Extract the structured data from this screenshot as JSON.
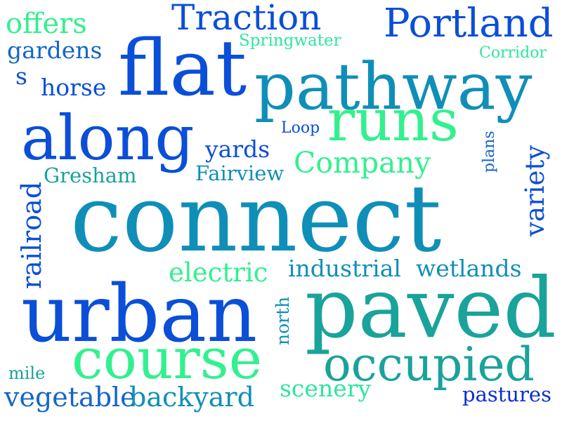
{
  "words": {
    "offers": "offers",
    "gardens": "gardens",
    "s": "s",
    "horse": "horse",
    "traction": "Traction",
    "springwater": "Springwater",
    "portland": "Portland",
    "corridor": "Corridor",
    "flat": "flat",
    "pathway": "pathway",
    "runs": "runs",
    "along": "along",
    "loop": "Loop",
    "yards": "yards",
    "plans": "plans",
    "variety": "variety",
    "gresham": "Gresham",
    "fairview": "Fairview",
    "company": "Company",
    "railroad": "railroad",
    "connect": "connect",
    "electric": "electric",
    "industrial": "industrial",
    "wetlands": "wetlands",
    "urban": "urban",
    "north": "north",
    "paved": "paved",
    "course": "course",
    "occupied": "occupied",
    "mile": "mile",
    "vegetable": "vegetable",
    "backyard": "backyard",
    "scenery": "scenery",
    "pastures": "pastures"
  },
  "colors": {
    "deep_blue": "#0a2fd4",
    "royal_blue": "#0b4fd8",
    "steel_blue": "#1565c8",
    "teal": "#0f8fb8",
    "sea_green": "#1aa39a",
    "mint": "#2ee5a0",
    "spring_green": "#33f08f",
    "background": "#ffffff"
  }
}
